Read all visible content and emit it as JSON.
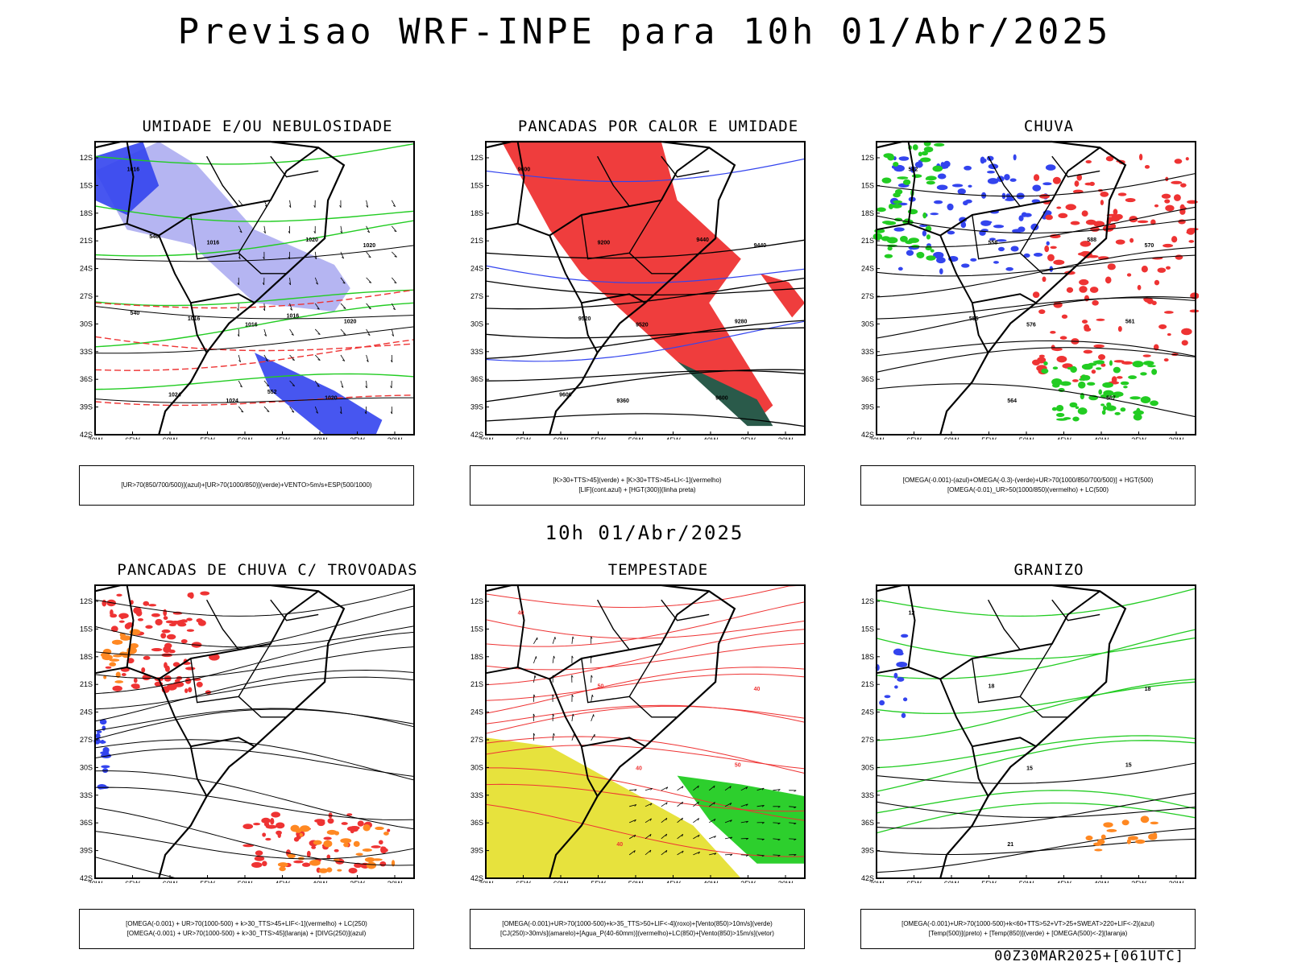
{
  "title": "Previsao WRF-INPE  para 10h 01/Abr/2025",
  "mid_title": "10h 01/Abr/2025",
  "footer_id": "00Z30MAR2025+[061UTC]",
  "axes": {
    "lat_labels": [
      "12S",
      "15S",
      "18S",
      "21S",
      "24S",
      "27S",
      "30S",
      "33S",
      "36S",
      "39S",
      "42S"
    ],
    "lon_labels": [
      "70W",
      "65W",
      "60W",
      "55W",
      "50W",
      "45W",
      "40W",
      "35W",
      "30W"
    ]
  },
  "colors": {
    "blue": "#3344ee",
    "light_blue": "#a8a8f0",
    "green": "#22cc22",
    "red": "#ee3333",
    "yellow": "#e6e033",
    "orange": "#ff8822",
    "dark_green": "#2a5a4a"
  },
  "panels": [
    {
      "title": "UMIDADE E/OU NEBULOSIDADE",
      "legend": [
        "[UR>70(850/700/500)](azul)+[UR>70(1000/850)](verde)+VENTO>5m/s+ESP(500/1000)"
      ],
      "contour_labels": [
        "1016",
        "1016",
        "1020",
        "1024",
        "1020",
        "1016",
        "1020",
        "1016",
        "1020",
        "1024",
        "1016",
        "546",
        "552",
        "540"
      ]
    },
    {
      "title": "PANCADAS POR CALOR E UMIDADE",
      "legend": [
        "[K>30+TTS>45](verde) + [K>30+TTS>45+LI<-1](vermelho)",
        "[LIF](cont.azul) + [HGT(300)](linha preta)"
      ],
      "contour_labels": [
        "9600",
        "9520",
        "9440",
        "9360",
        "9280",
        "9200",
        "9600",
        "9520",
        "9440",
        "9600"
      ]
    },
    {
      "title": "CHUVA",
      "legend": [
        "[OMEGA(-0.001)-(azul)+OMEGA(-0.3)-(verde)+UR>70(1000/850/700/500)] + HGT(500)",
        "[OMEGA(-0.01)_UR>50(1000/850)(vermelho) + LC(500)"
      ],
      "contour_labels": [
        "582",
        "576",
        "570",
        "564",
        "561",
        "558",
        "567",
        "555",
        "588"
      ]
    },
    {
      "title": "PANCADAS DE CHUVA C/ TROVOADAS",
      "legend": [
        "[OMEGA(-0.001) + UR>70(1000-500) + k>30_TTS>45+LIF<-1](vermelho) + LC(250)",
        "[OMEGA(-0.001) + UR>70(1000-500) + k>30_TTS>45](laranja) + [DIVG(250)](azul)"
      ],
      "contour_labels": []
    },
    {
      "title": "TEMPESTADE",
      "legend": [
        "[OMEGA(-0.001)+UR>70(1000-500)+k>35_TTS>50+LIF<-4](roxo)+[Vento(850)>10m/s](verde)",
        "[CJ(250)>30m/s](amarelo)+[Agua_P(40-60mm)](vermelho)+LC(850)+[Vento(850)>15m/s](vetor)"
      ],
      "contour_labels": [
        "40",
        "40",
        "40",
        "40",
        "50",
        "50"
      ]
    },
    {
      "title": "GRANIZO",
      "legend": [
        "[OMEGA(-0.001)+UR>70(1000-500)+k<60+TTS>52+VT>25+SWEAT>220+LIF<-2](azul)",
        "[Temp(500)](preto) + [Temp(850)](verde) + [OMEGA(500)<-2](laranja)"
      ],
      "contour_labels": [
        "12",
        "15",
        "18",
        "21",
        "15",
        "18"
      ]
    }
  ]
}
